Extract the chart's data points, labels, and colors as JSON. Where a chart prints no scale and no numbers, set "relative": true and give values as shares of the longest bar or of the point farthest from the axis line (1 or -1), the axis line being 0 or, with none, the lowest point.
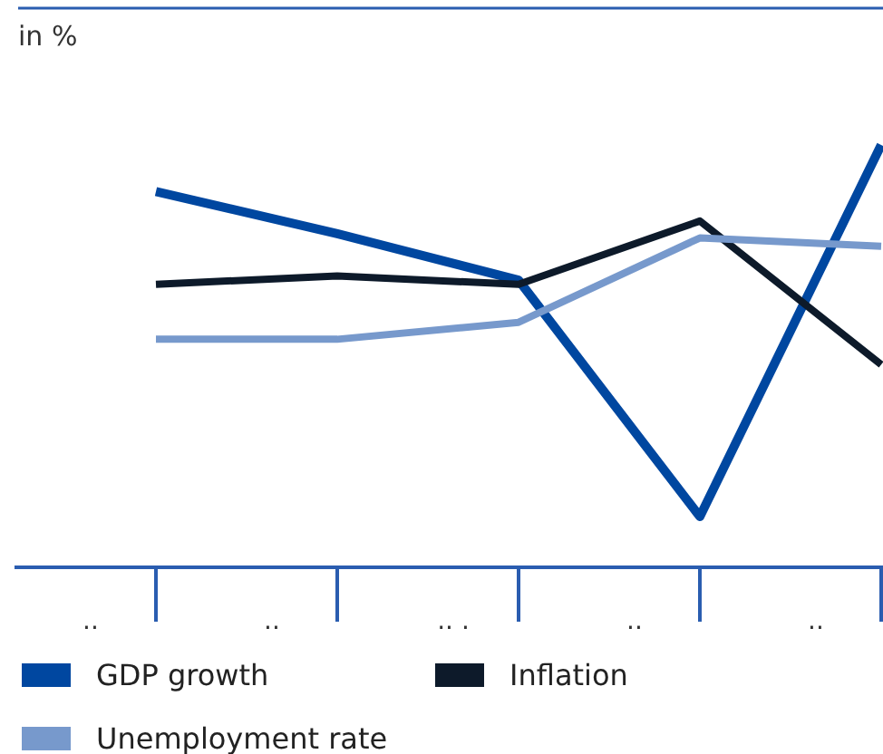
{
  "chart_data": {
    "type": "line",
    "relative": true,
    "ylabel": "in %",
    "categories": [
      null,
      null,
      null,
      null,
      null
    ],
    "annotations": [
      "..",
      "..",
      ".. .",
      "..",
      ".."
    ],
    "legend": "bottom",
    "series": [
      {
        "name": "GDP growth",
        "color": "#0047a0",
        "values": [
          0.89,
          0.79,
          0.68,
          0.12,
          1
        ]
      },
      {
        "name": "Inflation",
        "color": "#0d1a2a",
        "values": [
          0.67,
          0.69,
          0.67,
          0.82,
          0.48
        ]
      },
      {
        "name": "Unemployment rate",
        "color": "#7799cc",
        "values": [
          0.54,
          0.54,
          0.58,
          0.78,
          0.76
        ]
      }
    ]
  }
}
